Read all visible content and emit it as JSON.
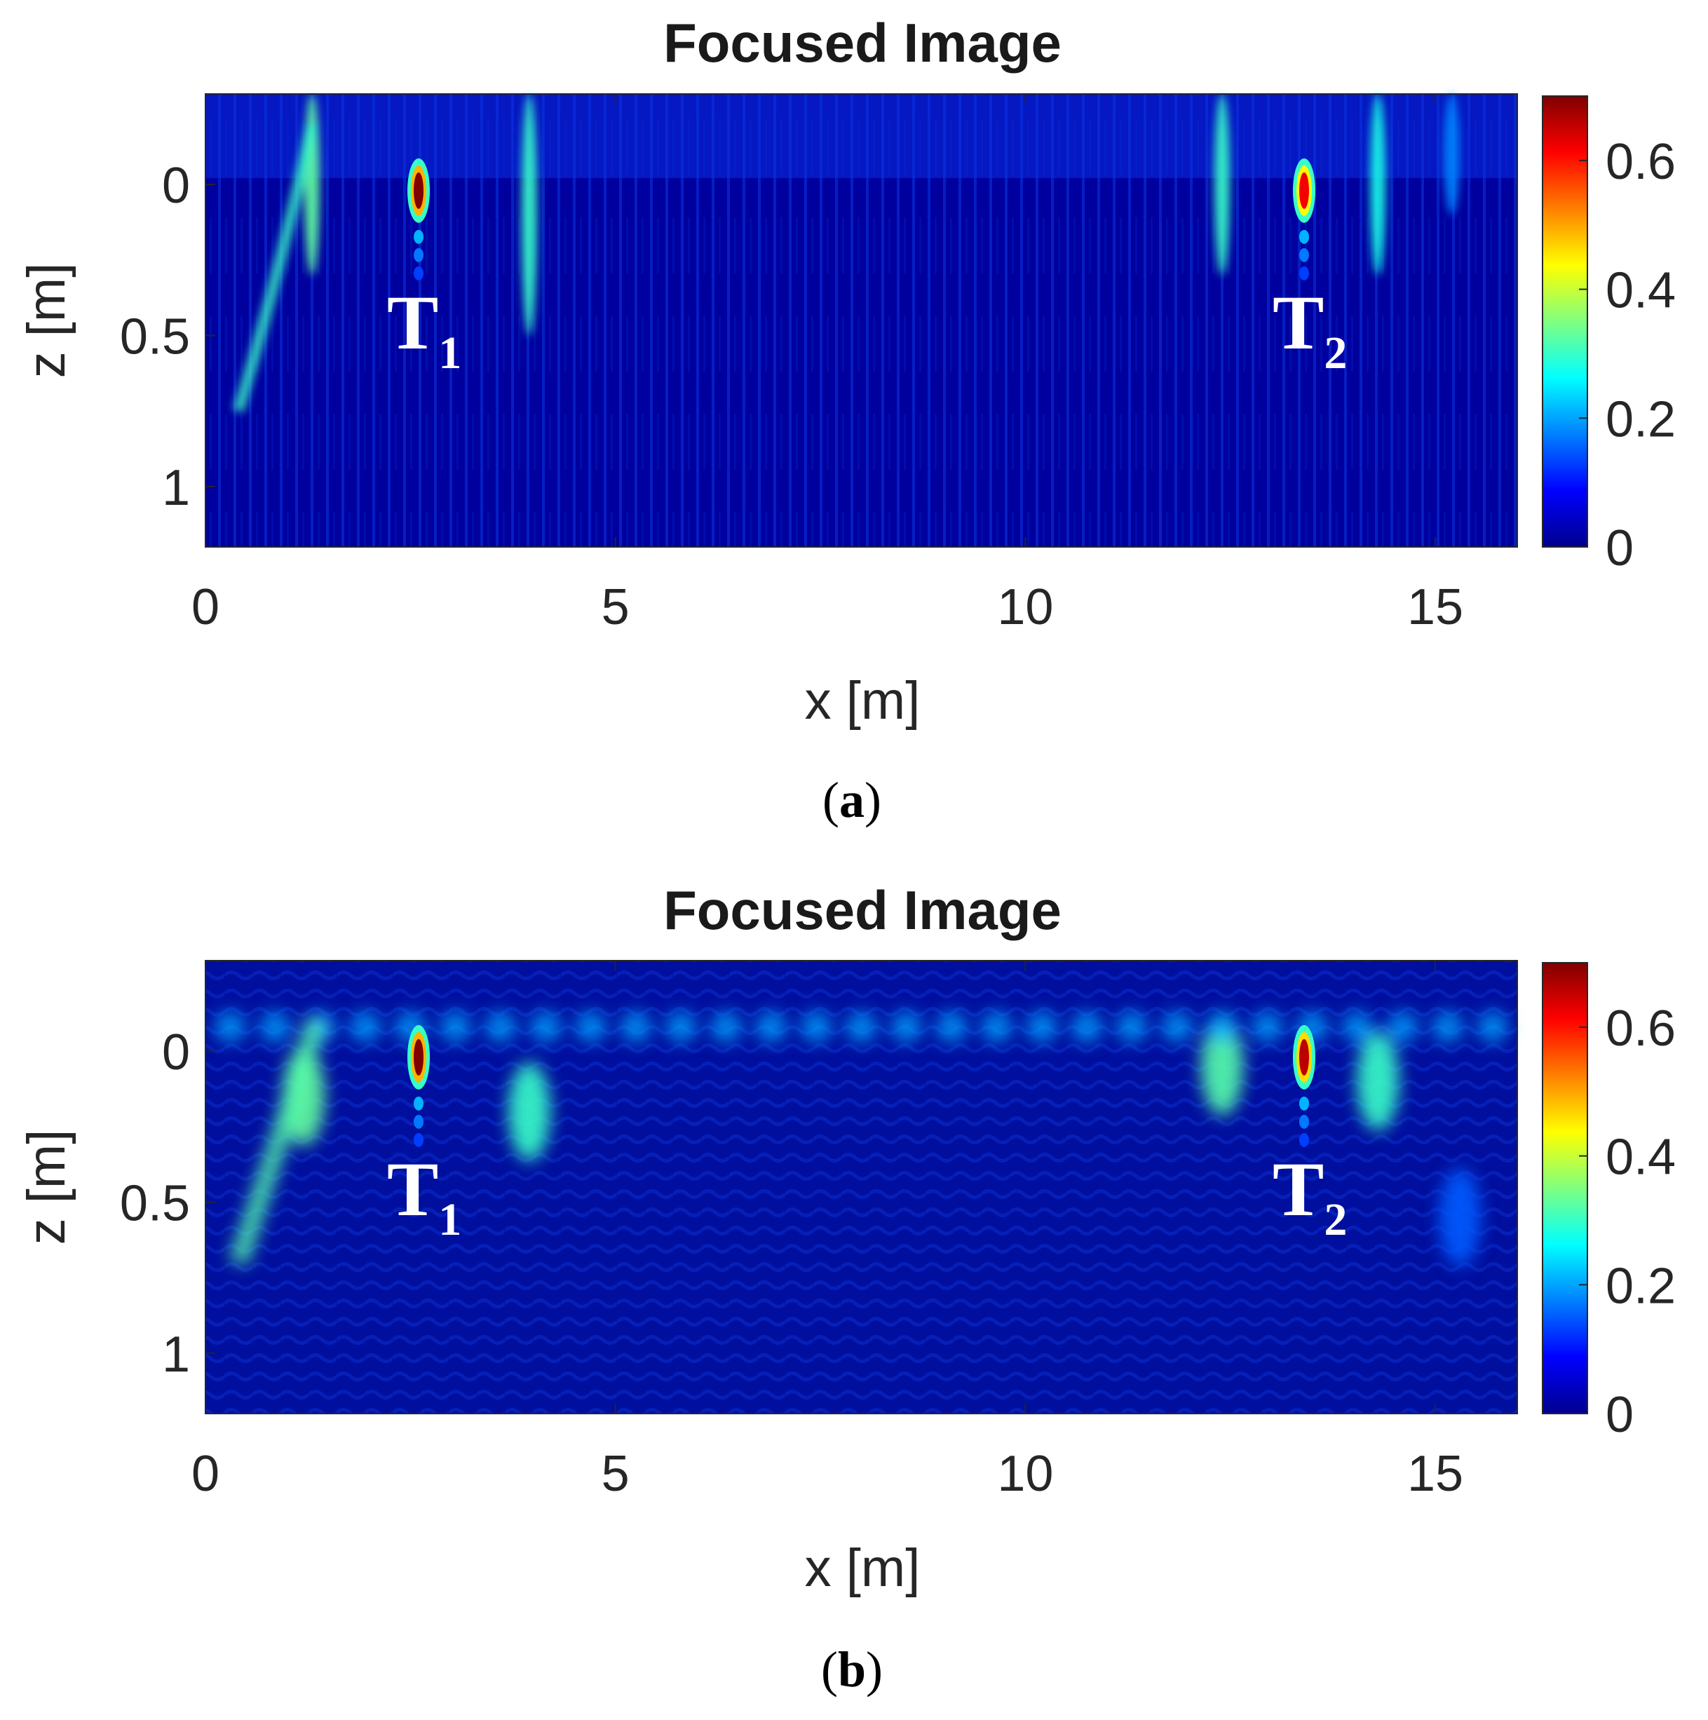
{
  "chart_data": [
    {
      "type": "heatmap",
      "panel_label": "a",
      "title": "Focused Image",
      "xlabel": "x [m]",
      "ylabel": "z [m]",
      "xlim": [
        0,
        16
      ],
      "ylim": [
        1.2,
        -0.3
      ],
      "xticks": [
        0,
        5,
        10,
        15
      ],
      "yticks": [
        0,
        0.5,
        1
      ],
      "colorbar": {
        "colormap": "jet",
        "range": [
          0,
          0.7
        ],
        "ticks": [
          0,
          0.2,
          0.4,
          0.6
        ]
      },
      "targets": [
        {
          "label": "T",
          "sub": "1",
          "x": 2.6,
          "z": 0.02,
          "peak": 0.7
        },
        {
          "label": "T",
          "sub": "2",
          "x": 13.4,
          "z": 0.02,
          "peak": 0.62
        }
      ],
      "streaks": [
        {
          "x": 1.3,
          "z0": -0.3,
          "z1": 0.3,
          "v": 0.33
        },
        {
          "x": 3.95,
          "z0": -0.3,
          "z1": 0.5,
          "v": 0.3
        },
        {
          "x": 12.4,
          "z0": -0.3,
          "z1": 0.3,
          "v": 0.3
        },
        {
          "x": 14.3,
          "z0": -0.3,
          "z1": 0.3,
          "v": 0.28
        },
        {
          "x": 15.2,
          "z0": -0.3,
          "z1": 0.1,
          "v": 0.18
        }
      ]
    },
    {
      "type": "heatmap",
      "panel_label": "b",
      "title": "Focused Image",
      "xlabel": "x [m]",
      "ylabel": "z [m]",
      "xlim": [
        0,
        16
      ],
      "ylim": [
        1.2,
        -0.3
      ],
      "xticks": [
        0,
        5,
        10,
        15
      ],
      "yticks": [
        0,
        0.5,
        1
      ],
      "colorbar": {
        "colormap": "jet",
        "range": [
          0,
          0.7
        ],
        "ticks": [
          0,
          0.2,
          0.4,
          0.6
        ]
      },
      "targets": [
        {
          "label": "T",
          "sub": "1",
          "x": 2.6,
          "z": 0.02,
          "peak": 0.7
        },
        {
          "label": "T",
          "sub": "2",
          "x": 13.4,
          "z": 0.02,
          "peak": 0.66
        }
      ],
      "blobs": [
        {
          "x": 1.2,
          "z": 0.15,
          "v": 0.33
        },
        {
          "x": 3.95,
          "z": 0.2,
          "v": 0.3
        },
        {
          "x": 12.4,
          "z": 0.05,
          "v": 0.32
        },
        {
          "x": 14.3,
          "z": 0.1,
          "v": 0.3
        },
        {
          "x": 15.3,
          "z": 0.55,
          "v": 0.15
        }
      ]
    }
  ]
}
